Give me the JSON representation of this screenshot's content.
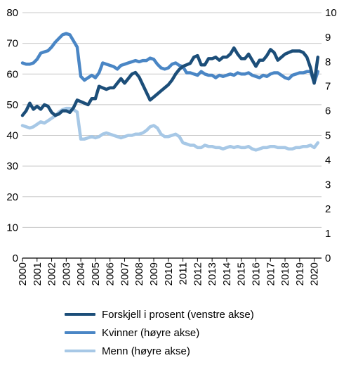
{
  "chart_data": {
    "type": "line",
    "x_labels": [
      "2000",
      "2001",
      "2002",
      "2003",
      "2004",
      "2005",
      "2006",
      "2007",
      "2008",
      "2009",
      "2010",
      "2011",
      "2012",
      "2013",
      "2014",
      "2015",
      "2016",
      "2017",
      "2018",
      "2019",
      "2020"
    ],
    "x_range": [
      2000,
      2020.5
    ],
    "y_left": {
      "range": [
        0,
        80
      ],
      "ticks": [
        0,
        10,
        20,
        30,
        40,
        50,
        60,
        70,
        80
      ]
    },
    "y_right": {
      "range": [
        0,
        10
      ],
      "ticks": [
        0,
        1,
        2,
        3,
        4,
        5,
        6,
        7,
        8,
        9,
        10
      ]
    },
    "grid": "horizontal",
    "legend_position": "bottom",
    "series": [
      {
        "name": "Forskjell i prosent (venstre akse)",
        "axis": "left",
        "color": "#1c4e79",
        "x": [
          2000,
          2000.25,
          2000.5,
          2000.75,
          2001,
          2001.25,
          2001.5,
          2001.75,
          2002,
          2002.25,
          2002.5,
          2002.75,
          2003,
          2003.25,
          2003.5,
          2003.75,
          2004,
          2004.25,
          2004.5,
          2004.75,
          2005,
          2005.25,
          2005.5,
          2005.75,
          2006,
          2006.25,
          2006.5,
          2006.75,
          2007,
          2007.25,
          2007.5,
          2007.75,
          2008,
          2008.25,
          2008.5,
          2008.75,
          2009,
          2009.25,
          2009.5,
          2009.75,
          2010,
          2010.25,
          2010.5,
          2010.75,
          2011,
          2011.25,
          2011.5,
          2011.75,
          2012,
          2012.25,
          2012.5,
          2012.75,
          2013,
          2013.25,
          2013.5,
          2013.75,
          2014,
          2014.25,
          2014.5,
          2014.75,
          2015,
          2015.25,
          2015.5,
          2015.75,
          2016,
          2016.25,
          2016.5,
          2016.75,
          2017,
          2017.25,
          2017.5,
          2017.75,
          2018,
          2018.25,
          2018.5,
          2018.75,
          2019,
          2019.25,
          2019.5,
          2019.75,
          2020,
          2020.25
        ],
        "values": [
          46.5,
          48,
          50.5,
          48.5,
          49.5,
          48.5,
          50,
          49.5,
          47.5,
          46.5,
          47,
          48,
          48,
          47.5,
          49,
          51.5,
          51,
          50.5,
          50,
          52,
          52,
          56,
          55.5,
          55,
          55.5,
          55.5,
          57,
          58.5,
          57,
          58.5,
          60,
          60.5,
          59,
          56.5,
          54,
          51.5,
          52.5,
          53.5,
          54.5,
          55.5,
          56.5,
          58,
          60,
          61.5,
          62.5,
          63,
          63.5,
          65.5,
          66,
          63,
          63,
          65,
          65,
          65.5,
          64.5,
          65.5,
          65.5,
          66.5,
          68.5,
          66.5,
          65,
          65,
          66.5,
          64.5,
          62.5,
          64.5,
          64.5,
          66,
          68,
          67,
          64.5,
          65.5,
          66.5,
          67,
          67.5,
          67.5,
          67.5,
          67,
          65.5,
          62,
          57,
          65.5
        ]
      },
      {
        "name": "Kvinner (høyre akse)",
        "axis": "right",
        "color": "#4a86c5",
        "x": [
          2000,
          2000.25,
          2000.5,
          2000.75,
          2001,
          2001.25,
          2001.5,
          2001.75,
          2002,
          2002.25,
          2002.5,
          2002.75,
          2003,
          2003.25,
          2003.5,
          2003.75,
          2004,
          2004.25,
          2004.5,
          2004.75,
          2005,
          2005.25,
          2005.5,
          2005.75,
          2006,
          2006.25,
          2006.5,
          2006.75,
          2007,
          2007.25,
          2007.5,
          2007.75,
          2008,
          2008.25,
          2008.5,
          2008.75,
          2009,
          2009.25,
          2009.5,
          2009.75,
          2010,
          2010.25,
          2010.5,
          2010.75,
          2011,
          2011.25,
          2011.5,
          2011.75,
          2012,
          2012.25,
          2012.5,
          2012.75,
          2013,
          2013.25,
          2013.5,
          2013.75,
          2014,
          2014.25,
          2014.5,
          2014.75,
          2015,
          2015.25,
          2015.5,
          2015.75,
          2016,
          2016.25,
          2016.5,
          2016.75,
          2017,
          2017.25,
          2017.5,
          2017.75,
          2018,
          2018.25,
          2018.5,
          2018.75,
          2019,
          2019.25,
          2019.5,
          2019.75,
          2020,
          2020.25
        ],
        "values": [
          7.95,
          7.9,
          7.9,
          7.95,
          8.1,
          8.35,
          8.4,
          8.45,
          8.6,
          8.8,
          8.95,
          9.1,
          9.15,
          9.1,
          8.85,
          8.6,
          7.4,
          7.25,
          7.35,
          7.45,
          7.35,
          7.55,
          7.95,
          7.9,
          7.85,
          7.8,
          7.7,
          7.85,
          7.9,
          7.95,
          8.0,
          8.05,
          8.0,
          8.05,
          8.05,
          8.15,
          8.1,
          7.9,
          7.75,
          7.7,
          7.75,
          7.9,
          7.95,
          7.85,
          7.8,
          7.55,
          7.55,
          7.5,
          7.45,
          7.6,
          7.5,
          7.45,
          7.45,
          7.35,
          7.45,
          7.4,
          7.45,
          7.5,
          7.45,
          7.55,
          7.5,
          7.5,
          7.55,
          7.45,
          7.4,
          7.35,
          7.45,
          7.4,
          7.5,
          7.55,
          7.55,
          7.45,
          7.35,
          7.3,
          7.45,
          7.5,
          7.55,
          7.55,
          7.6,
          7.6,
          7.15,
          7.6
        ]
      },
      {
        "name": "Menn (høyre akse)",
        "axis": "right",
        "color": "#a7c8e6",
        "x": [
          2000,
          2000.25,
          2000.5,
          2000.75,
          2001,
          2001.25,
          2001.5,
          2001.75,
          2002,
          2002.25,
          2002.5,
          2002.75,
          2003,
          2003.25,
          2003.5,
          2003.75,
          2004,
          2004.25,
          2004.5,
          2004.75,
          2005,
          2005.25,
          2005.5,
          2005.75,
          2006,
          2006.25,
          2006.5,
          2006.75,
          2007,
          2007.25,
          2007.5,
          2007.75,
          2008,
          2008.25,
          2008.5,
          2008.75,
          2009,
          2009.25,
          2009.5,
          2009.75,
          2010,
          2010.25,
          2010.5,
          2010.75,
          2011,
          2011.25,
          2011.5,
          2011.75,
          2012,
          2012.25,
          2012.5,
          2012.75,
          2013,
          2013.25,
          2013.5,
          2013.75,
          2014,
          2014.25,
          2014.5,
          2014.75,
          2015,
          2015.25,
          2015.5,
          2015.75,
          2016,
          2016.25,
          2016.5,
          2016.75,
          2017,
          2017.25,
          2017.5,
          2017.75,
          2018,
          2018.25,
          2018.5,
          2018.75,
          2019,
          2019.25,
          2019.5,
          2019.75,
          2020,
          2020.25
        ],
        "values": [
          5.4,
          5.35,
          5.3,
          5.35,
          5.45,
          5.55,
          5.5,
          5.6,
          5.7,
          5.8,
          5.95,
          6.05,
          6.1,
          6.1,
          6.05,
          5.95,
          4.85,
          4.85,
          4.9,
          4.95,
          4.9,
          4.95,
          5.05,
          5.1,
          5.05,
          5.0,
          4.95,
          4.9,
          4.95,
          5.0,
          5.0,
          5.05,
          5.05,
          5.1,
          5.2,
          5.35,
          5.4,
          5.3,
          5.05,
          4.95,
          4.95,
          5.0,
          5.05,
          4.95,
          4.7,
          4.65,
          4.6,
          4.6,
          4.5,
          4.5,
          4.6,
          4.55,
          4.55,
          4.5,
          4.5,
          4.45,
          4.5,
          4.55,
          4.5,
          4.55,
          4.5,
          4.5,
          4.55,
          4.45,
          4.4,
          4.45,
          4.5,
          4.5,
          4.55,
          4.55,
          4.5,
          4.5,
          4.5,
          4.45,
          4.45,
          4.5,
          4.5,
          4.55,
          4.55,
          4.6,
          4.5,
          4.7
        ]
      }
    ]
  }
}
